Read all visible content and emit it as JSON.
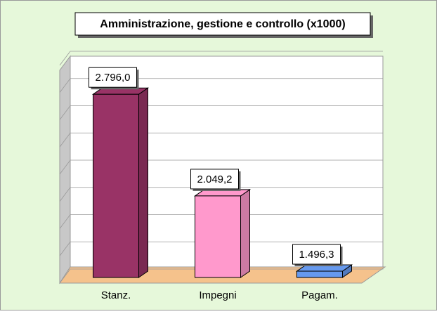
{
  "chart_data": {
    "type": "bar3d",
    "title": "Amministrazione, gestione e controllo (x1000)",
    "categories": [
      "Stanz.",
      "Impegni",
      "Pagam."
    ],
    "values": [
      2796.0,
      2049.2,
      1496.3
    ],
    "value_labels": [
      "2.796,0",
      "2.049,2",
      "1.496,3"
    ],
    "colors": [
      "#993366",
      "#ff99cc",
      "#6699ee"
    ],
    "ylim": [
      1450,
      3050
    ],
    "yticks": [
      1450,
      1650,
      1850,
      2050,
      2250,
      2450,
      2650,
      2850,
      3050
    ],
    "grid": true
  }
}
